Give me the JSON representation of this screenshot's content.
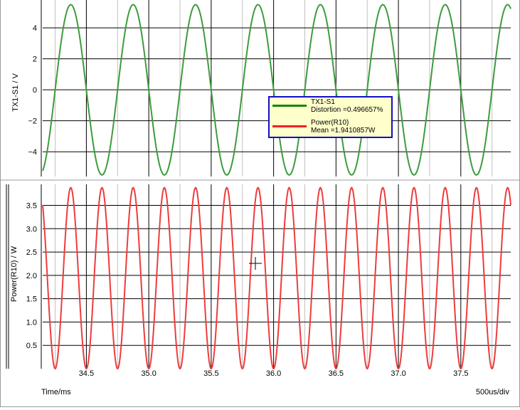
{
  "chart_data": [
    {
      "type": "line",
      "ylabel": "TX1-S1 / V",
      "xlabel": "Time/ms",
      "xlim": [
        34.15,
        37.9
      ],
      "ylim": [
        -5.6,
        5.8
      ],
      "yticks": [
        4,
        2,
        0,
        -2,
        -4
      ],
      "ytick_labels": [
        "4",
        "2",
        "0",
        "−2",
        "−4"
      ],
      "grid": true,
      "series": [
        {
          "name": "TX1-S1",
          "color": "#3c9c3c",
          "amplitude": 5.5,
          "period_ms": 0.5,
          "zero_crossing_ms": 34.5,
          "slope_at_zero_crossing": "falling"
        }
      ]
    },
    {
      "type": "line",
      "ylabel": "Power(R10) / W",
      "xlabel": "Time/ms",
      "xlim": [
        34.15,
        37.9
      ],
      "ylim": [
        0,
        3.95
      ],
      "yticks": [
        3.5,
        3.0,
        2.5,
        2.0,
        1.5,
        1.0,
        0.5
      ],
      "ytick_labels": [
        "3.5",
        "3.0",
        "2.5",
        "2.0",
        "1.5",
        "1.0",
        "0.5"
      ],
      "xticks": [
        34.5,
        35.0,
        35.5,
        36.0,
        36.5,
        37.0,
        37.5
      ],
      "xtick_labels": [
        "34.5",
        "35.0",
        "35.5",
        "36.0",
        "36.5",
        "37.0",
        "37.5"
      ],
      "grid": true,
      "series": [
        {
          "name": "Power(R10)",
          "color": "#ee3c3c",
          "peak": 3.88,
          "min": 0.0,
          "mean": 1.9410857,
          "period_ms": 0.25,
          "minimum_at_ms": 34.5
        }
      ]
    }
  ],
  "legend": {
    "entries": [
      {
        "name": "TX1-S1",
        "detail": "Distortion =0.496657%",
        "color": "#118811"
      },
      {
        "name": "Power(R10)",
        "detail": "Mean =1.9410857W",
        "color": "#ee2222"
      }
    ]
  },
  "footer": {
    "x_unit_label": "Time/ms",
    "timebase_label": "500us/div"
  }
}
